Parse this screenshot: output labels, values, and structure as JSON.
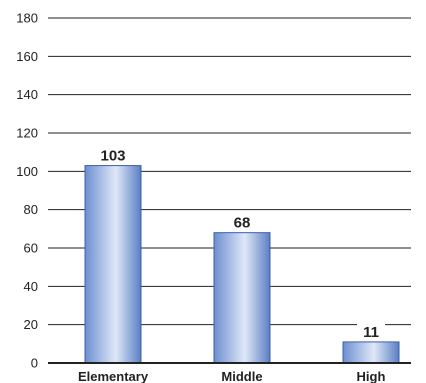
{
  "chart_data": {
    "type": "bar",
    "categories": [
      "Elementary",
      "Middle",
      "High"
    ],
    "values": [
      103,
      68,
      11
    ],
    "data_labels": [
      "103",
      "68",
      "11"
    ],
    "title": "",
    "xlabel": "",
    "ylabel": "",
    "ylim": [
      0,
      180
    ],
    "yticks": [
      0,
      20,
      40,
      60,
      80,
      100,
      120,
      140,
      160,
      180
    ],
    "ytick_labels": [
      "0",
      "20",
      "40",
      "60",
      "80",
      "100",
      "120",
      "140",
      "160",
      "180"
    ],
    "grid": true,
    "legend": "none",
    "colors": {
      "bar_edge": "#3a5fa8",
      "bar_dark": "#6d8fd0",
      "bar_light": "#dfe8f8",
      "grid": "#222222",
      "axis": "#222222"
    }
  }
}
